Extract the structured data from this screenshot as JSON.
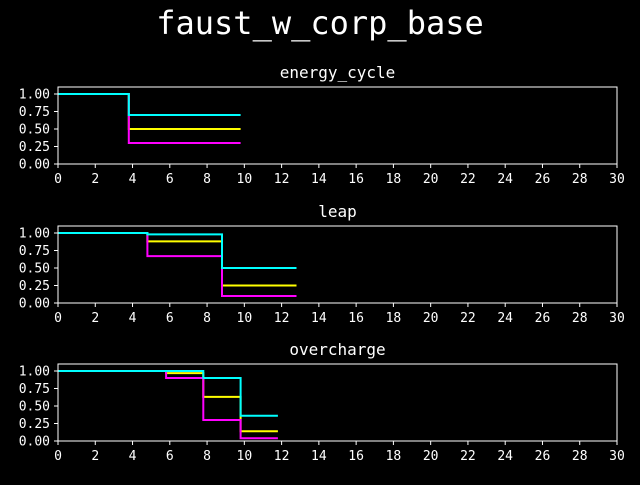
{
  "figure": {
    "title": "faust_w_corp_base"
  },
  "colors": {
    "background": "#000000",
    "axes": "#ffffff",
    "series": [
      "#ffff00",
      "#ff00ff",
      "#00ffff"
    ]
  },
  "chart_data": [
    {
      "type": "line",
      "step": true,
      "title": "energy_cycle",
      "xlim": [
        0,
        30
      ],
      "ylim": [
        0,
        1.1
      ],
      "xticks": [
        "0",
        "2",
        "4",
        "6",
        "8",
        "10",
        "12",
        "14",
        "16",
        "18",
        "20",
        "22",
        "24",
        "26",
        "28",
        "30"
      ],
      "yticks": [
        "0.00",
        "0.25",
        "0.50",
        "0.75",
        "1.00"
      ],
      "series": [
        {
          "color": "#ffff00",
          "points": [
            [
              0,
              1.0
            ],
            [
              3.8,
              1.0
            ],
            [
              3.8,
              0.5
            ],
            [
              9.8,
              0.5
            ]
          ]
        },
        {
          "color": "#ff00ff",
          "points": [
            [
              0,
              1.0
            ],
            [
              3.8,
              1.0
            ],
            [
              3.8,
              0.3
            ],
            [
              9.8,
              0.3
            ]
          ]
        },
        {
          "color": "#00ffff",
          "points": [
            [
              0,
              1.0
            ],
            [
              3.8,
              1.0
            ],
            [
              3.8,
              0.7
            ],
            [
              9.8,
              0.7
            ]
          ]
        }
      ]
    },
    {
      "type": "line",
      "step": true,
      "title": "leap",
      "xlim": [
        0,
        30
      ],
      "ylim": [
        0,
        1.1
      ],
      "xticks": [
        "0",
        "2",
        "4",
        "6",
        "8",
        "10",
        "12",
        "14",
        "16",
        "18",
        "20",
        "22",
        "24",
        "26",
        "28",
        "30"
      ],
      "yticks": [
        "0.00",
        "0.25",
        "0.50",
        "0.75",
        "1.00"
      ],
      "series": [
        {
          "color": "#ffff00",
          "points": [
            [
              0,
              1.0
            ],
            [
              4.8,
              1.0
            ],
            [
              4.8,
              0.88
            ],
            [
              8.8,
              0.88
            ],
            [
              8.8,
              0.25
            ],
            [
              12.8,
              0.25
            ]
          ]
        },
        {
          "color": "#ff00ff",
          "points": [
            [
              0,
              1.0
            ],
            [
              4.8,
              1.0
            ],
            [
              4.8,
              0.67
            ],
            [
              8.8,
              0.67
            ],
            [
              8.8,
              0.1
            ],
            [
              12.8,
              0.1
            ]
          ]
        },
        {
          "color": "#00ffff",
          "points": [
            [
              0,
              1.0
            ],
            [
              4.8,
              1.0
            ],
            [
              4.8,
              0.98
            ],
            [
              8.8,
              0.98
            ],
            [
              8.8,
              0.5
            ],
            [
              12.8,
              0.5
            ]
          ]
        }
      ]
    },
    {
      "type": "line",
      "step": true,
      "title": "overcharge",
      "xlim": [
        0,
        30
      ],
      "ylim": [
        0,
        1.1
      ],
      "xticks": [
        "0",
        "2",
        "4",
        "6",
        "8",
        "10",
        "12",
        "14",
        "16",
        "18",
        "20",
        "22",
        "24",
        "26",
        "28",
        "30"
      ],
      "yticks": [
        "0.00",
        "0.25",
        "0.50",
        "0.75",
        "1.00"
      ],
      "series": [
        {
          "color": "#ffff00",
          "points": [
            [
              0,
              1.0
            ],
            [
              5.8,
              1.0
            ],
            [
              5.8,
              0.97
            ],
            [
              7.8,
              0.97
            ],
            [
              7.8,
              0.63
            ],
            [
              9.8,
              0.63
            ],
            [
              9.8,
              0.14
            ],
            [
              11.8,
              0.14
            ]
          ]
        },
        {
          "color": "#ff00ff",
          "points": [
            [
              0,
              1.0
            ],
            [
              5.8,
              1.0
            ],
            [
              5.8,
              0.9
            ],
            [
              7.8,
              0.9
            ],
            [
              7.8,
              0.3
            ],
            [
              9.8,
              0.3
            ],
            [
              9.8,
              0.04
            ],
            [
              11.8,
              0.04
            ]
          ]
        },
        {
          "color": "#00ffff",
          "points": [
            [
              0,
              1.0
            ],
            [
              5.8,
              1.0
            ],
            [
              5.8,
              1.0
            ],
            [
              7.8,
              1.0
            ],
            [
              7.8,
              0.9
            ],
            [
              9.8,
              0.9
            ],
            [
              9.8,
              0.36
            ],
            [
              11.8,
              0.36
            ]
          ]
        }
      ]
    }
  ]
}
